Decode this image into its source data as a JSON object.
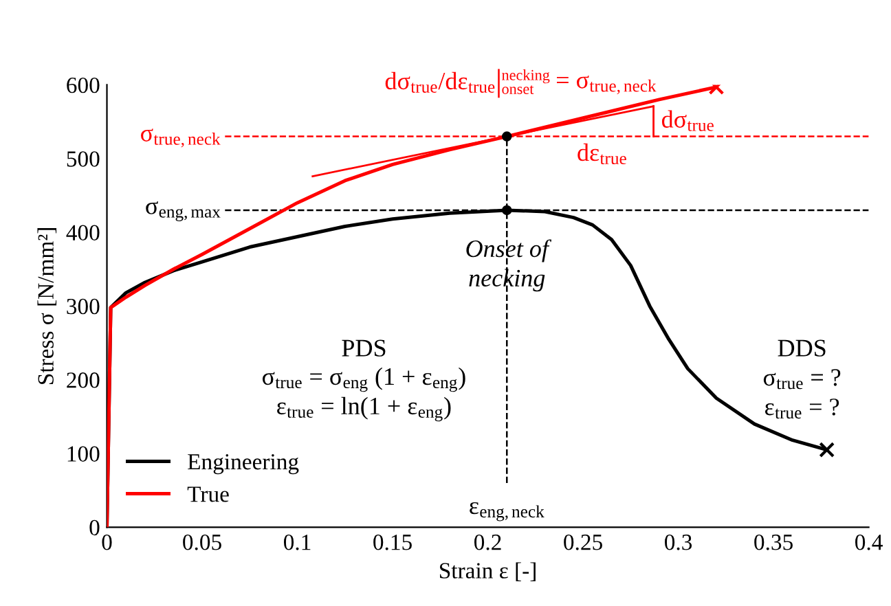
{
  "chart_data": {
    "type": "line",
    "xlabel": "Strain ε [-]",
    "ylabel": "Stress σ [N/mm²]",
    "xlim": [
      0,
      0.4
    ],
    "xticks": [
      0,
      0.05,
      0.1,
      0.15,
      0.2,
      0.25,
      0.3,
      0.35,
      0.4
    ],
    "ylim": [
      0,
      600
    ],
    "yticks": [
      0,
      100,
      200,
      300,
      400,
      500,
      600
    ],
    "grid": false,
    "legend": "bottom left",
    "series": [
      {
        "name": "Engineering",
        "color": "#000000",
        "x": [
          0,
          0.002,
          0.01,
          0.02,
          0.035,
          0.05,
          0.075,
          0.1,
          0.125,
          0.15,
          0.18,
          0.21,
          0.23,
          0.245,
          0.255,
          0.265,
          0.275,
          0.285,
          0.295,
          0.305,
          0.32,
          0.34,
          0.36,
          0.378
        ],
        "values": [
          0,
          298,
          318,
          332,
          348,
          360,
          380,
          394,
          408,
          418,
          426,
          430,
          428,
          420,
          410,
          390,
          355,
          300,
          255,
          215,
          175,
          140,
          118,
          105
        ]
      },
      {
        "name": "True",
        "color": "#ff0000",
        "x": [
          0,
          0.002,
          0.01,
          0.02,
          0.035,
          0.05,
          0.075,
          0.1,
          0.125,
          0.15,
          0.18,
          0.21,
          0.25,
          0.29,
          0.32
        ],
        "values": [
          0,
          298,
          312,
          328,
          350,
          370,
          405,
          440,
          470,
          492,
          512,
          530,
          555,
          580,
          597
        ]
      },
      {
        "type": "line",
        "color": "#ff0000",
        "x": [
          0.108,
          0.287
        ],
        "values": [
          476,
          571
        ]
      },
      {
        "type": "line",
        "color": "#ff0000",
        "x": [
          0.287,
          0.287
        ],
        "values": [
          530,
          571
        ]
      },
      {
        "type": "scatter",
        "marker": "cross",
        "color": "#ff0000",
        "x": [
          0.32
        ],
        "values": [
          597
        ]
      },
      {
        "type": "scatter",
        "marker": "cross",
        "color": "#000000",
        "x": [
          0.378
        ],
        "values": [
          105
        ]
      },
      {
        "type": "scatter",
        "marker": "circle",
        "color": "#000000",
        "x": [
          0.21,
          0.21
        ],
        "values": [
          430,
          530
        ]
      }
    ],
    "ref_lines": [
      {
        "axis": "y",
        "value": 530,
        "label": "σ$_{true,neck}$",
        "color": "#ff0000",
        "line_style": "dashed"
      },
      {
        "axis": "y",
        "value": 430,
        "label": "σ$_{eng,max}$",
        "color": "#000000",
        "line_style": "dashed"
      },
      {
        "axis": "x",
        "value": 0.21,
        "label": "ε$_{eng,neck}$",
        "color": "#000000",
        "line_style": "dashed"
      }
    ],
    "annotations": [
      "dσ$_{true}$/dε$_{true}$",
      "necking",
      "onset",
      "= σ$_{true,neck}$",
      "dσ$_{true}$",
      "dε$_{true}$",
      "Onset of\nnecking",
      "PDS",
      "σ$_{true}$ = σ$_{eng}$ (1 + ε$_{eng}$)",
      "ε$_{true}$ = ln(1 + ε$_{eng}$)",
      "DDS",
      "σ$_{true}$ = ?",
      "ε$_{true}$ = ?"
    ]
  }
}
